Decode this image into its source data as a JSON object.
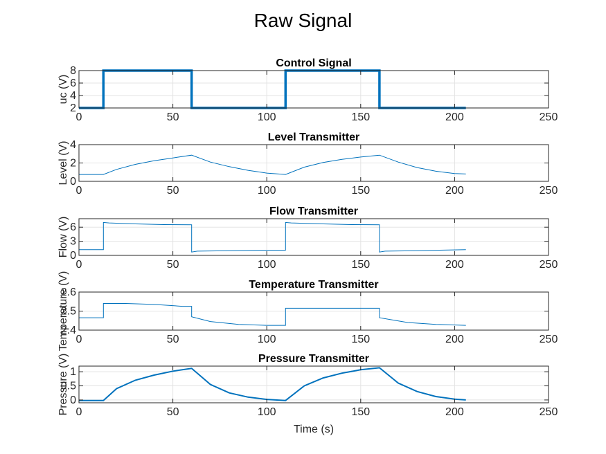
{
  "figure": {
    "title": "Raw Signal"
  },
  "chart_data": [
    {
      "type": "line",
      "title": "Control Signal",
      "xlabel": "",
      "ylabel": "uc (V)",
      "xlim": [
        0,
        250
      ],
      "ylim": [
        2,
        8
      ],
      "xticks": [
        0,
        50,
        100,
        150,
        200,
        250
      ],
      "yticks": [
        2,
        4,
        6,
        8
      ],
      "grid": true,
      "color": "#0072BD",
      "series": [
        {
          "x": [
            0,
            13,
            13,
            60,
            60,
            110,
            110,
            160,
            160,
            206
          ],
          "y": [
            2,
            2,
            8,
            8,
            2,
            2,
            8,
            8,
            2,
            2
          ]
        }
      ]
    },
    {
      "type": "line",
      "title": "Level Transmitter",
      "xlabel": "",
      "ylabel": "Level (V)",
      "xlim": [
        0,
        250
      ],
      "ylim": [
        0,
        4
      ],
      "xticks": [
        0,
        50,
        100,
        150,
        200,
        250
      ],
      "yticks": [
        0,
        2,
        4
      ],
      "grid": true,
      "color": "#0072BD",
      "series": [
        {
          "x": [
            0,
            13,
            20,
            30,
            40,
            50,
            60,
            70,
            80,
            90,
            100,
            110,
            120,
            130,
            140,
            150,
            160,
            170,
            180,
            190,
            200,
            206
          ],
          "y": [
            0.75,
            0.75,
            1.3,
            1.85,
            2.25,
            2.55,
            2.85,
            2.1,
            1.6,
            1.2,
            0.9,
            0.75,
            1.55,
            2.05,
            2.4,
            2.65,
            2.85,
            2.1,
            1.5,
            1.1,
            0.85,
            0.8
          ]
        }
      ]
    },
    {
      "type": "line",
      "title": "Flow Transmitter",
      "xlabel": "",
      "ylabel": "Flow (V)",
      "xlim": [
        0,
        250
      ],
      "ylim": [
        0,
        7.8
      ],
      "xticks": [
        0,
        50,
        100,
        150,
        200,
        250
      ],
      "yticks": [
        0,
        3,
        6
      ],
      "grid": true,
      "color": "#0072BD",
      "series": [
        {
          "x": [
            0,
            13,
            13,
            16,
            30,
            45,
            60,
            60,
            63,
            80,
            100,
            110,
            110,
            113,
            130,
            145,
            160,
            160,
            163,
            180,
            206
          ],
          "y": [
            1.2,
            1.2,
            7.0,
            6.9,
            6.7,
            6.55,
            6.5,
            0.7,
            0.9,
            1.0,
            1.1,
            1.1,
            7.0,
            6.9,
            6.7,
            6.55,
            6.5,
            0.7,
            0.9,
            1.0,
            1.2
          ]
        }
      ]
    },
    {
      "type": "line",
      "title": "Temperature Transmitter",
      "xlabel": "",
      "ylabel": "Temperature (V)",
      "xlim": [
        0,
        250
      ],
      "ylim": [
        2.4,
        2.6
      ],
      "xticks": [
        0,
        50,
        100,
        150,
        200,
        250
      ],
      "yticks": [
        2.4,
        2.5,
        2.6
      ],
      "grid": true,
      "color": "#0072BD",
      "series": [
        {
          "x": [
            0,
            13,
            13,
            25,
            40,
            55,
            60,
            60,
            70,
            85,
            100,
            110,
            110,
            125,
            140,
            155,
            160,
            160,
            175,
            190,
            206
          ],
          "y": [
            2.465,
            2.465,
            2.54,
            2.54,
            2.535,
            2.525,
            2.525,
            2.47,
            2.445,
            2.43,
            2.425,
            2.425,
            2.515,
            2.515,
            2.515,
            2.515,
            2.515,
            2.465,
            2.44,
            2.43,
            2.425
          ]
        }
      ]
    },
    {
      "type": "line",
      "title": "Pressure Transmitter",
      "xlabel": "Time (s)",
      "ylabel": "Pressure (V)",
      "xlim": [
        0,
        250
      ],
      "ylim": [
        -0.1,
        1.2
      ],
      "xticks": [
        0,
        50,
        100,
        150,
        200,
        250
      ],
      "yticks": [
        0,
        0.5,
        1
      ],
      "grid": true,
      "color": "#0072BD",
      "series": [
        {
          "x": [
            0,
            13,
            20,
            30,
            40,
            50,
            60,
            70,
            80,
            90,
            100,
            110,
            120,
            130,
            140,
            150,
            160,
            170,
            180,
            190,
            200,
            206
          ],
          "y": [
            -0.02,
            -0.02,
            0.4,
            0.7,
            0.88,
            1.02,
            1.12,
            0.55,
            0.25,
            0.1,
            0.02,
            -0.02,
            0.5,
            0.78,
            0.95,
            1.07,
            1.14,
            0.6,
            0.3,
            0.12,
            0.03,
            0.0
          ]
        }
      ]
    }
  ]
}
